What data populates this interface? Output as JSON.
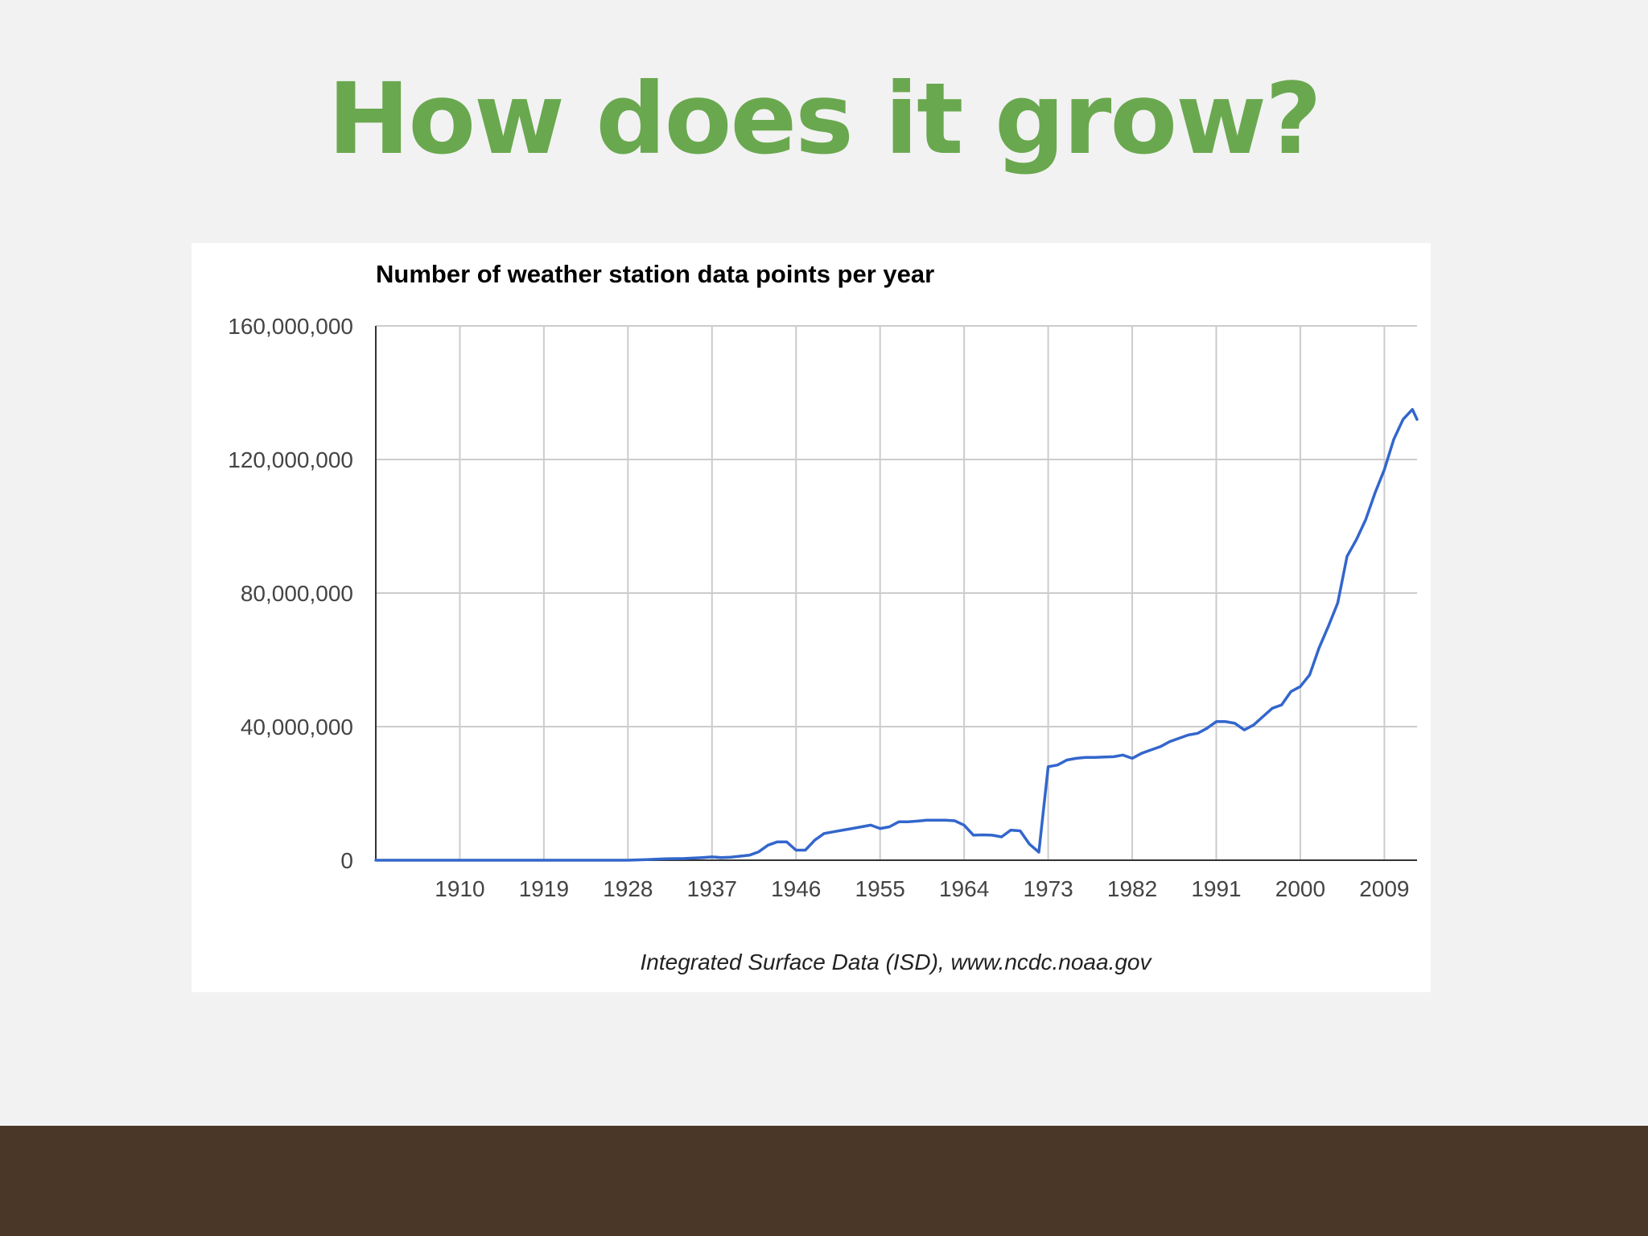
{
  "slide": {
    "title": "How does it grow?"
  },
  "colors": {
    "background": "#f2f2f2",
    "title": "#6aa84f",
    "line": "#3366cc",
    "footer": "#4a3728"
  },
  "chart_data": {
    "type": "line",
    "title": "Number of weather station data points per year",
    "xlabel": "",
    "ylabel": "",
    "source": "Integrated Surface Data (ISD), www.ncdc.noaa.gov",
    "xlim": [
      1901,
      2012.5
    ],
    "ylim": [
      0,
      160000000
    ],
    "x_ticks": [
      1910,
      1919,
      1928,
      1937,
      1946,
      1955,
      1964,
      1973,
      1982,
      1991,
      2000,
      2009
    ],
    "x_tick_labels": [
      "1910",
      "1919",
      "1928",
      "1937",
      "1946",
      "1955",
      "1964",
      "1973",
      "1982",
      "1991",
      "2000",
      "2009"
    ],
    "y_ticks": [
      0,
      40000000,
      80000000,
      120000000,
      160000000
    ],
    "y_tick_labels": [
      "0",
      "40,000,000",
      "80,000,000",
      "120,000,000",
      "160,000,000"
    ],
    "grid": true,
    "legend": "none",
    "series": [
      {
        "x": [
          1901,
          1905,
          1910,
          1915,
          1920,
          1925,
          1928,
          1930,
          1932,
          1934,
          1936,
          1937,
          1938,
          1939,
          1940,
          1941,
          1942,
          1943,
          1944,
          1945,
          1946,
          1947,
          1948,
          1949,
          1950,
          1951,
          1952,
          1953,
          1954,
          1955,
          1956,
          1957,
          1958,
          1959,
          1960,
          1961,
          1962,
          1963,
          1964,
          1965,
          1966,
          1967,
          1968,
          1969,
          1970,
          1971,
          1972,
          1973,
          1974,
          1975,
          1976,
          1977,
          1978,
          1979,
          1980,
          1981,
          1982,
          1983,
          1984,
          1985,
          1986,
          1987,
          1988,
          1989,
          1990,
          1991,
          1992,
          1993,
          1994,
          1995,
          1996,
          1997,
          1998,
          1999,
          2000,
          2001,
          2002,
          2003,
          2004,
          2005,
          2006,
          2007,
          2008,
          2009,
          2010,
          2011,
          2012,
          2013
        ],
        "values": [
          0,
          0,
          0,
          0,
          0,
          0,
          0,
          200000,
          400000,
          500000,
          800000,
          1000000,
          800000,
          900000,
          1200000,
          1500000,
          2500000,
          4500000,
          5500000,
          5500000,
          3000000,
          3000000,
          6000000,
          8000000,
          8500000,
          9000000,
          9500000,
          10000000,
          10500000,
          9500000,
          10000000,
          11500000,
          11500000,
          11700000,
          12000000,
          12000000,
          12000000,
          11800000,
          10500000,
          7500000,
          7600000,
          7500000,
          7000000,
          9000000,
          8800000,
          4800000,
          2400000,
          28000000,
          28500000,
          30000000,
          30500000,
          30800000,
          30800000,
          30900000,
          31000000,
          31500000,
          30500000,
          32000000,
          33000000,
          34000000,
          35500000,
          36500000,
          37500000,
          38000000,
          39500000,
          41500000,
          41500000,
          41000000,
          39000000,
          40500000,
          43000000,
          45500000,
          46500000,
          50500000,
          52000000,
          55500000,
          63500000,
          70000000,
          77000000,
          91000000,
          96000000,
          102000000,
          110000000,
          117000000,
          126000000,
          132000000,
          135000000,
          132000000
        ]
      }
    ]
  }
}
